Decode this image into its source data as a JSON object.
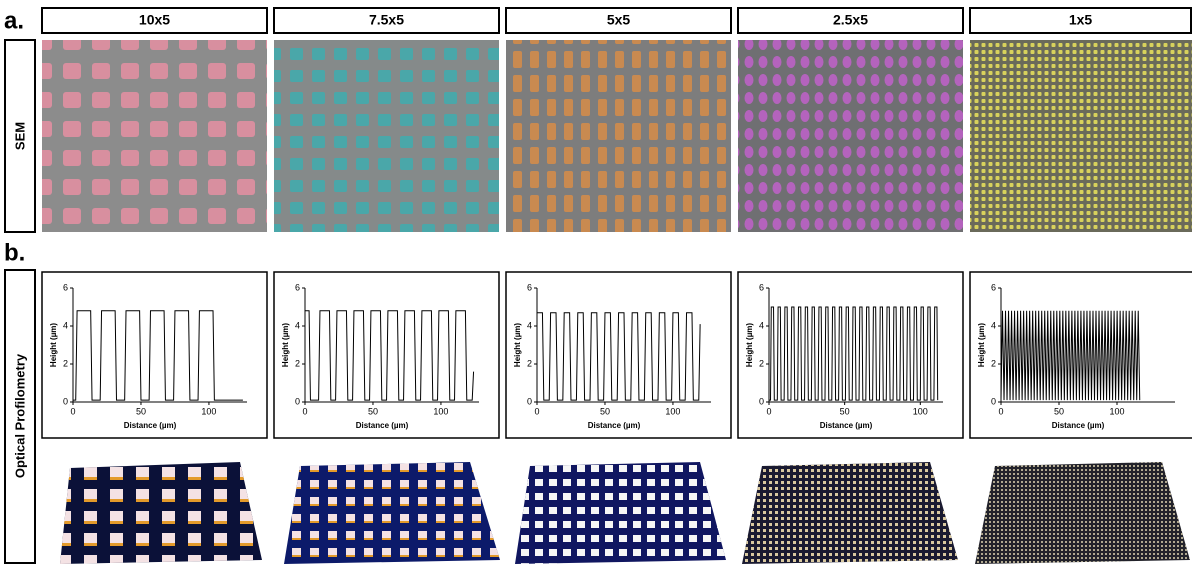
{
  "labels": {
    "a": "a.",
    "b": "b."
  },
  "columns": [
    "10x5",
    "7.5x5",
    "5x5",
    "2.5x5",
    "1x5"
  ],
  "rows": [
    "SEM",
    "Optical Profilometry"
  ],
  "chart_data": [
    {
      "type": "line",
      "xlabel": "Distance (µm)",
      "ylabel": "Height (µm)",
      "color": "#000000",
      "xlim": [
        0,
        128
      ],
      "ylim": [
        0,
        6
      ],
      "xticks": [
        0,
        50,
        100
      ],
      "yticks": [
        0,
        2,
        4,
        6
      ],
      "x": [
        0,
        2,
        3,
        13,
        14,
        20,
        21,
        31,
        32,
        38,
        39,
        49,
        50,
        56,
        57,
        67,
        68,
        74,
        75,
        85,
        86,
        92,
        93,
        103,
        104,
        125
      ],
      "values": [
        0.1,
        0.1,
        4.8,
        4.8,
        0.1,
        0.1,
        4.8,
        4.8,
        0.1,
        0.1,
        4.8,
        4.8,
        0.1,
        0.1,
        4.8,
        4.8,
        0.1,
        0.1,
        4.8,
        4.8,
        0.1,
        0.1,
        4.8,
        4.8,
        0.1,
        0.1
      ]
    },
    {
      "type": "line",
      "xlabel": "Distance (µm)",
      "ylabel": "Height (µm)",
      "color": "#000000",
      "xlim": [
        0,
        128
      ],
      "ylim": [
        0,
        6
      ],
      "xticks": [
        0,
        50,
        100
      ],
      "yticks": [
        0,
        2,
        4,
        6
      ],
      "x": [
        0,
        3,
        4,
        10,
        11,
        18,
        19,
        22.5,
        23.5,
        30.5,
        31.5,
        35,
        36,
        43,
        44,
        47.5,
        48.5,
        55.5,
        56.5,
        60,
        61,
        68,
        69,
        72.5,
        73.5,
        80.5,
        81.5,
        85,
        86,
        93,
        94,
        97.5,
        98.5,
        105.5,
        106.5,
        110,
        111,
        118,
        119,
        123,
        124
      ],
      "values": [
        4.8,
        4.8,
        0.1,
        0.1,
        4.8,
        4.8,
        0.1,
        0.1,
        4.8,
        4.8,
        0.1,
        0.1,
        4.8,
        4.8,
        0.1,
        0.1,
        4.8,
        4.8,
        0.1,
        0.1,
        4.8,
        4.8,
        0.1,
        0.1,
        4.8,
        4.8,
        0.1,
        0.1,
        4.8,
        4.8,
        0.1,
        0.1,
        4.8,
        4.8,
        0.1,
        0.1,
        4.8,
        4.8,
        0.1,
        0.1,
        1.6
      ]
    },
    {
      "type": "line",
      "xlabel": "Distance (µm)",
      "ylabel": "Height (µm)",
      "color": "#000000",
      "xlim": [
        0,
        128
      ],
      "ylim": [
        0,
        6
      ],
      "xticks": [
        0,
        50,
        100
      ],
      "yticks": [
        0,
        2,
        4,
        6
      ],
      "x": [
        0,
        4,
        5,
        9,
        10,
        14,
        15,
        19,
        20,
        24,
        25,
        29,
        30,
        34,
        35,
        39,
        40,
        44,
        45,
        49,
        50,
        54,
        55,
        59,
        60,
        64,
        65,
        69,
        70,
        74,
        75,
        79,
        80,
        84,
        85,
        89,
        90,
        94,
        95,
        99,
        100,
        104,
        105,
        109,
        110,
        114,
        115,
        119,
        120
      ],
      "values": [
        4.7,
        4.7,
        0.1,
        0.1,
        4.7,
        4.7,
        0.1,
        0.1,
        4.7,
        4.7,
        0.1,
        0.1,
        4.7,
        4.7,
        0.1,
        0.1,
        4.7,
        4.7,
        0.1,
        0.1,
        4.7,
        4.7,
        0.1,
        0.1,
        4.7,
        4.7,
        0.1,
        0.1,
        4.7,
        4.7,
        0.1,
        0.1,
        4.7,
        4.7,
        0.1,
        0.1,
        4.7,
        4.7,
        0.1,
        0.1,
        4.7,
        4.7,
        0.1,
        0.1,
        4.7,
        4.7,
        0.1,
        0.1,
        4.1
      ]
    },
    {
      "type": "line",
      "xlabel": "Distance (µm)",
      "ylabel": "Height (µm)",
      "color": "#000000",
      "xlim": [
        0,
        115
      ],
      "ylim": [
        0,
        6
      ],
      "xticks": [
        0,
        50,
        100
      ],
      "yticks": [
        0,
        2,
        4,
        6
      ],
      "x": [
        0,
        1,
        1.5,
        3,
        3.5,
        5.5,
        6,
        7.5,
        8,
        10,
        10.5,
        12,
        12.5,
        14.5,
        15,
        16.5,
        17,
        19,
        19.5,
        21,
        21.5,
        23.5,
        24,
        25.5,
        26,
        28,
        28.5,
        30,
        30.5,
        32.5,
        33,
        34.5,
        35,
        37,
        37.5,
        39,
        39.5,
        41.5,
        42,
        43.5,
        44,
        46,
        46.5,
        48,
        48.5,
        50.5,
        51,
        52.5,
        53,
        55,
        55.5,
        57,
        57.5,
        59.5,
        60,
        61.5,
        62,
        64,
        64.5,
        66,
        66.5,
        68.5,
        69,
        70.5,
        71,
        73,
        73.5,
        75,
        75.5,
        77.5,
        78,
        79.5,
        80,
        82,
        82.5,
        84,
        84.5,
        86.5,
        87,
        88.5,
        89,
        91,
        91.5,
        93,
        93.5,
        95.5,
        96,
        97.5,
        98,
        100,
        100.5,
        102,
        102.5,
        104.5,
        105,
        106.5,
        107,
        109,
        109.5,
        111,
        111.5
      ],
      "values": [
        0.1,
        0.1,
        5,
        5,
        0.1,
        0.1,
        5,
        5,
        0.1,
        0.1,
        5,
        5,
        0.1,
        0.1,
        5,
        5,
        0.1,
        0.1,
        5,
        5,
        0.1,
        0.1,
        5,
        5,
        0.1,
        0.1,
        5,
        5,
        0.1,
        0.1,
        5,
        5,
        0.1,
        0.1,
        5,
        5,
        0.1,
        0.1,
        5,
        5,
        0.1,
        0.1,
        5,
        5,
        0.1,
        0.1,
        5,
        5,
        0.1,
        0.1,
        5,
        5,
        0.1,
        0.1,
        5,
        5,
        0.1,
        0.1,
        5,
        5,
        0.1,
        0.1,
        5,
        5,
        0.1,
        0.1,
        5,
        5,
        0.1,
        0.1,
        5,
        5,
        0.1,
        0.1,
        5,
        5,
        0.1,
        0.1,
        5,
        5,
        0.1,
        0.1,
        5,
        5,
        0.1,
        0.1,
        5,
        5,
        0.1,
        0.1,
        5,
        5,
        0.1,
        0.1,
        5,
        5,
        0.1,
        0.1,
        5,
        5,
        0.1
      ]
    },
    {
      "type": "line",
      "xlabel": "Distance (µm)",
      "ylabel": "Height (µm)",
      "color": "#000000",
      "xlim": [
        0,
        150
      ],
      "ylim": [
        0,
        6
      ],
      "xticks": [
        0,
        50,
        100
      ],
      "yticks": [
        0,
        2,
        4,
        6
      ],
      "x": [
        0,
        1.3,
        2.6,
        3.9,
        5.2,
        6.5,
        7.8,
        9.1,
        10.4,
        11.7,
        13,
        14.3,
        15.6,
        16.9,
        18.2,
        19.5,
        20.8,
        22.1,
        23.4,
        24.7,
        26,
        27.3,
        28.6,
        29.9,
        31.2,
        32.5,
        33.8,
        35.1,
        36.4,
        37.7,
        39,
        40.3,
        41.6,
        42.9,
        44.2,
        45.5,
        46.8,
        48.1,
        49.4,
        50.7,
        52,
        53.3,
        54.6,
        55.9,
        57.2,
        58.5,
        59.8,
        61.1,
        62.4,
        63.7,
        65,
        66.3,
        67.6,
        68.9,
        70.2,
        71.5,
        72.8,
        74.1,
        75.4,
        76.7,
        78,
        79.3,
        80.6,
        81.9,
        83.2,
        84.5,
        85.8,
        87.1,
        88.4,
        89.7,
        91,
        92.3,
        93.6,
        94.9,
        96.2,
        97.5,
        98.8,
        100.1,
        101.4,
        102.7,
        104,
        105.3,
        106.6,
        107.9,
        109.2,
        110.5,
        111.8,
        113.1,
        114.4,
        115.7,
        117,
        118.3,
        119.6
      ],
      "values": [
        0.1,
        4.8,
        0.1,
        4.8,
        0.1,
        4.8,
        0.1,
        4.8,
        0.1,
        4.8,
        0.1,
        4.8,
        0.1,
        4.8,
        0.1,
        4.8,
        0.1,
        4.8,
        0.1,
        4.8,
        0.1,
        4.8,
        0.1,
        4.8,
        0.1,
        4.8,
        0.1,
        4.8,
        0.1,
        4.8,
        0.1,
        4.8,
        0.1,
        4.8,
        0.1,
        4.8,
        0.1,
        4.8,
        0.1,
        4.8,
        0.1,
        4.8,
        0.1,
        4.8,
        0.1,
        4.8,
        0.1,
        4.8,
        0.1,
        4.8,
        0.1,
        4.8,
        0.1,
        4.8,
        0.1,
        4.8,
        0.1,
        4.8,
        0.1,
        4.8,
        0.1,
        4.8,
        0.1,
        4.8,
        0.1,
        4.8,
        0.1,
        4.8,
        0.1,
        4.8,
        0.1,
        4.8,
        0.1,
        4.8,
        0.1,
        4.8,
        0.1,
        4.8,
        0.1,
        4.8,
        0.1,
        4.8,
        0.1,
        4.8,
        0.1,
        4.8,
        0.1,
        4.8,
        0.1,
        4.8,
        0.1,
        4.8,
        0.1
      ]
    }
  ]
}
